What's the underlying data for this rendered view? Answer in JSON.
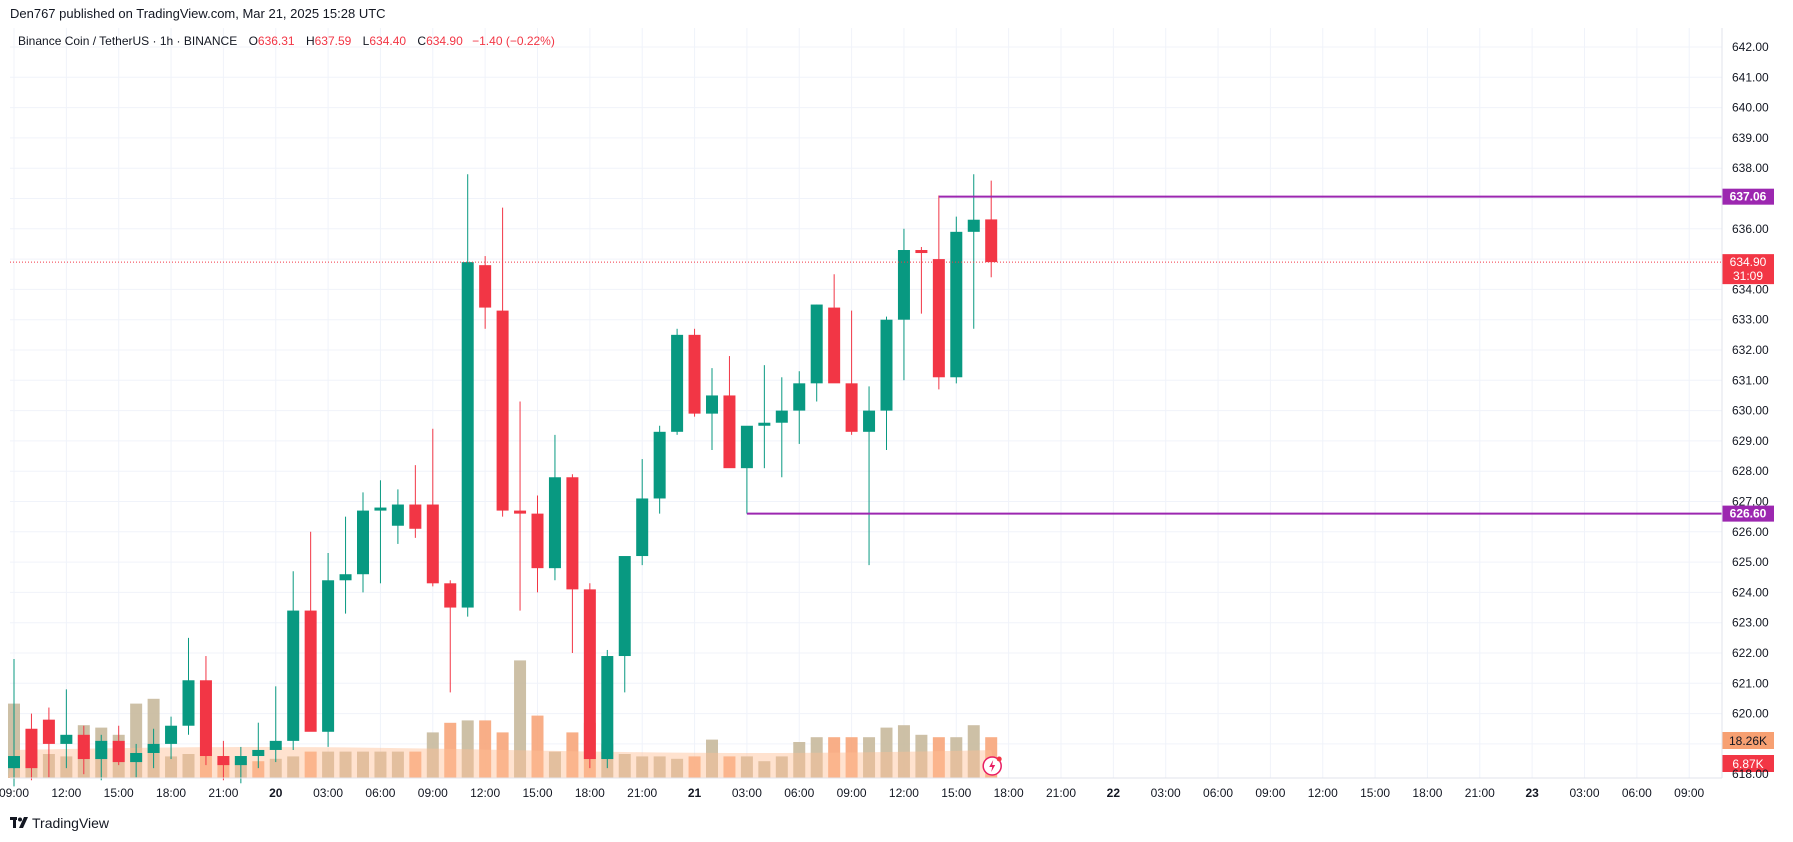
{
  "header": {
    "published": "Den767 published on TradingView.com, Mar 21, 2025 15:28 UTC"
  },
  "legend": {
    "symbol": "Binance Coin / TetherUS · 1h · BINANCE",
    "o_label": "O",
    "o_value": "636.31",
    "h_label": "H",
    "h_value": "637.59",
    "l_label": "L",
    "l_value": "634.40",
    "c_label": "C",
    "c_value": "634.90",
    "change": "−1.40 (−0.22%)"
  },
  "footer": {
    "brand": "TradingView"
  },
  "colors": {
    "up": "#089981",
    "down": "#f23645",
    "level": "#9c27b0",
    "vol_up": "#c4b596",
    "vol_down": "#f7a072",
    "vol_ma": "#ffbe95"
  },
  "chart_data": {
    "type": "candlestick",
    "title": "Binance Coin / TetherUS · 1h · BINANCE",
    "ylim": [
      618,
      642.5
    ],
    "y_ticks": [
      "642.00",
      "641.00",
      "640.00",
      "639.00",
      "638.00",
      "636.00",
      "634.00",
      "633.00",
      "632.00",
      "631.00",
      "630.00",
      "629.00",
      "628.00",
      "627.00",
      "626.00",
      "625.00",
      "624.00",
      "623.00",
      "622.00",
      "621.00",
      "620.00",
      "618.00"
    ],
    "x_ticks": [
      "09:00",
      "12:00",
      "15:00",
      "18:00",
      "21:00",
      "20",
      "03:00",
      "06:00",
      "09:00",
      "12:00",
      "15:00",
      "18:00",
      "21:00",
      "21",
      "03:00",
      "06:00",
      "09:00",
      "12:00",
      "15:00",
      "18:00",
      "21:00",
      "22",
      "03:00",
      "06:00",
      "09:00",
      "12:00",
      "15:00",
      "18:00",
      "21:00",
      "23",
      "03:00",
      "06:00",
      "09:00"
    ],
    "bold_ticks": [
      "20",
      "21",
      "22",
      "23"
    ],
    "levels": [
      {
        "price": 637.06,
        "label": "637.06",
        "start_index": 53
      },
      {
        "price": 626.6,
        "label": "626.60",
        "start_index": 42
      }
    ],
    "last_price": {
      "price": 634.9,
      "label": "634.90",
      "countdown": "31:09"
    },
    "volume_labels": {
      "ma": "18.26K",
      "last": "6.87K"
    },
    "candles": [
      {
        "o": 618.2,
        "h": 621.8,
        "l": 617.6,
        "c": 618.6
      },
      {
        "o": 619.5,
        "h": 620.0,
        "l": 617.8,
        "c": 618.2
      },
      {
        "o": 619.8,
        "h": 620.2,
        "l": 617.9,
        "c": 619.0
      },
      {
        "o": 619.0,
        "h": 620.8,
        "l": 618.2,
        "c": 619.3
      },
      {
        "o": 619.3,
        "h": 619.6,
        "l": 618.0,
        "c": 618.5
      },
      {
        "o": 618.5,
        "h": 619.3,
        "l": 617.8,
        "c": 619.1
      },
      {
        "o": 619.1,
        "h": 619.6,
        "l": 618.3,
        "c": 618.4
      },
      {
        "o": 618.4,
        "h": 619.0,
        "l": 617.9,
        "c": 618.7
      },
      {
        "o": 618.7,
        "h": 619.5,
        "l": 618.2,
        "c": 619.0
      },
      {
        "o": 619.0,
        "h": 619.9,
        "l": 618.5,
        "c": 619.6
      },
      {
        "o": 619.6,
        "h": 622.5,
        "l": 619.3,
        "c": 621.1
      },
      {
        "o": 621.1,
        "h": 621.9,
        "l": 618.3,
        "c": 618.6
      },
      {
        "o": 618.6,
        "h": 619.1,
        "l": 617.8,
        "c": 618.3
      },
      {
        "o": 618.3,
        "h": 618.9,
        "l": 617.7,
        "c": 618.6
      },
      {
        "o": 618.6,
        "h": 619.7,
        "l": 618.2,
        "c": 618.8
      },
      {
        "o": 618.8,
        "h": 620.9,
        "l": 618.4,
        "c": 619.1
      },
      {
        "o": 619.1,
        "h": 624.7,
        "l": 618.8,
        "c": 623.4
      },
      {
        "o": 623.4,
        "h": 626.0,
        "l": 619.5,
        "c": 619.4
      },
      {
        "o": 619.4,
        "h": 625.3,
        "l": 618.9,
        "c": 624.4
      },
      {
        "o": 624.4,
        "h": 626.5,
        "l": 623.3,
        "c": 624.6
      },
      {
        "o": 624.6,
        "h": 627.3,
        "l": 624.0,
        "c": 626.7
      },
      {
        "o": 626.7,
        "h": 627.7,
        "l": 624.3,
        "c": 626.8
      },
      {
        "o": 626.2,
        "h": 627.4,
        "l": 625.6,
        "c": 626.9
      },
      {
        "o": 626.9,
        "h": 628.2,
        "l": 625.8,
        "c": 626.1
      },
      {
        "o": 626.9,
        "h": 629.4,
        "l": 624.2,
        "c": 624.3
      },
      {
        "o": 624.3,
        "h": 624.4,
        "l": 620.7,
        "c": 623.5
      },
      {
        "o": 623.5,
        "h": 637.8,
        "l": 623.2,
        "c": 634.9
      },
      {
        "o": 634.8,
        "h": 635.1,
        "l": 632.7,
        "c": 633.4
      },
      {
        "o": 633.3,
        "h": 636.7,
        "l": 626.5,
        "c": 626.7
      },
      {
        "o": 626.7,
        "h": 630.3,
        "l": 623.4,
        "c": 626.6
      },
      {
        "o": 626.6,
        "h": 627.2,
        "l": 624.0,
        "c": 624.8
      },
      {
        "o": 624.8,
        "h": 629.2,
        "l": 624.4,
        "c": 627.8
      },
      {
        "o": 627.8,
        "h": 627.9,
        "l": 622.0,
        "c": 624.1
      },
      {
        "o": 624.1,
        "h": 624.3,
        "l": 618.2,
        "c": 618.5
      },
      {
        "o": 618.5,
        "h": 622.1,
        "l": 618.2,
        "c": 621.9
      },
      {
        "o": 621.9,
        "h": 625.1,
        "l": 620.7,
        "c": 625.2
      },
      {
        "o": 625.2,
        "h": 628.4,
        "l": 624.9,
        "c": 627.1
      },
      {
        "o": 627.1,
        "h": 629.5,
        "l": 626.6,
        "c": 629.3
      },
      {
        "o": 629.3,
        "h": 632.7,
        "l": 629.2,
        "c": 632.5
      },
      {
        "o": 632.5,
        "h": 632.7,
        "l": 629.8,
        "c": 629.9
      },
      {
        "o": 629.9,
        "h": 631.4,
        "l": 628.7,
        "c": 630.5
      },
      {
        "o": 630.5,
        "h": 631.8,
        "l": 628.2,
        "c": 628.1
      },
      {
        "o": 628.1,
        "h": 629.4,
        "l": 626.6,
        "c": 629.5
      },
      {
        "o": 629.5,
        "h": 631.5,
        "l": 628.1,
        "c": 629.6
      },
      {
        "o": 629.6,
        "h": 631.1,
        "l": 627.8,
        "c": 630.0
      },
      {
        "o": 630.0,
        "h": 631.3,
        "l": 628.9,
        "c": 630.9
      },
      {
        "o": 630.9,
        "h": 633.5,
        "l": 630.3,
        "c": 633.5
      },
      {
        "o": 633.4,
        "h": 634.5,
        "l": 631.0,
        "c": 630.9
      },
      {
        "o": 630.9,
        "h": 633.3,
        "l": 629.2,
        "c": 629.3
      },
      {
        "o": 629.3,
        "h": 630.8,
        "l": 624.9,
        "c": 630.0
      },
      {
        "o": 630.0,
        "h": 633.1,
        "l": 628.7,
        "c": 633.0
      },
      {
        "o": 633.0,
        "h": 636.0,
        "l": 631.0,
        "c": 635.3
      },
      {
        "o": 635.3,
        "h": 635.4,
        "l": 633.2,
        "c": 635.2
      },
      {
        "o": 635.0,
        "h": 637.1,
        "l": 630.7,
        "c": 631.1
      },
      {
        "o": 631.1,
        "h": 636.4,
        "l": 630.9,
        "c": 635.9
      },
      {
        "o": 635.9,
        "h": 637.8,
        "l": 632.7,
        "c": 636.3
      },
      {
        "o": 636.31,
        "h": 637.59,
        "l": 634.4,
        "c": 634.9
      }
    ],
    "volume": [
      21,
      19,
      20,
      19,
      20,
      19,
      20,
      21,
      19,
      19,
      20,
      19,
      17,
      17,
      17,
      18,
      19,
      21,
      21,
      21,
      21,
      21,
      21,
      21,
      21,
      21,
      26,
      26,
      21,
      27,
      20,
      21,
      21,
      21,
      20,
      20,
      19,
      19,
      18,
      19,
      18,
      19,
      19,
      17,
      19,
      17,
      19,
      19,
      19,
      19,
      19,
      20,
      20,
      19,
      19,
      20,
      19
    ],
    "volume_colors": [
      "up",
      "up",
      "up",
      "up",
      "up",
      "up",
      "up",
      "up",
      "up",
      "up",
      "up",
      "down",
      "down",
      "up",
      "down",
      "up",
      "up",
      "down",
      "up",
      "up",
      "up",
      "up",
      "up",
      "down",
      "up",
      "down",
      "up",
      "down",
      "down",
      "up",
      "down",
      "up",
      "down",
      "down",
      "up",
      "up",
      "up",
      "up",
      "up",
      "down",
      "up",
      "down",
      "up",
      "up",
      "up",
      "up",
      "up",
      "down",
      "down",
      "up",
      "up",
      "up",
      "up",
      "down",
      "up",
      "up",
      "down"
    ],
    "volume_spikes": {
      "0": 5,
      "4": 3,
      "5": 3,
      "6": 2,
      "7": 5,
      "8": 6,
      "11": 4,
      "24": 2,
      "25": 3,
      "26": 2,
      "27": 2,
      "28": 2,
      "29": 8,
      "30": 4,
      "32": 2,
      "33": 3,
      "34": 1,
      "40": 2,
      "45": 2,
      "46": 2,
      "47": 2,
      "48": 2,
      "49": 2,
      "50": 3,
      "51": 3,
      "52": 2,
      "53": 2,
      "54": 2,
      "55": 3,
      "56": 2
    }
  }
}
